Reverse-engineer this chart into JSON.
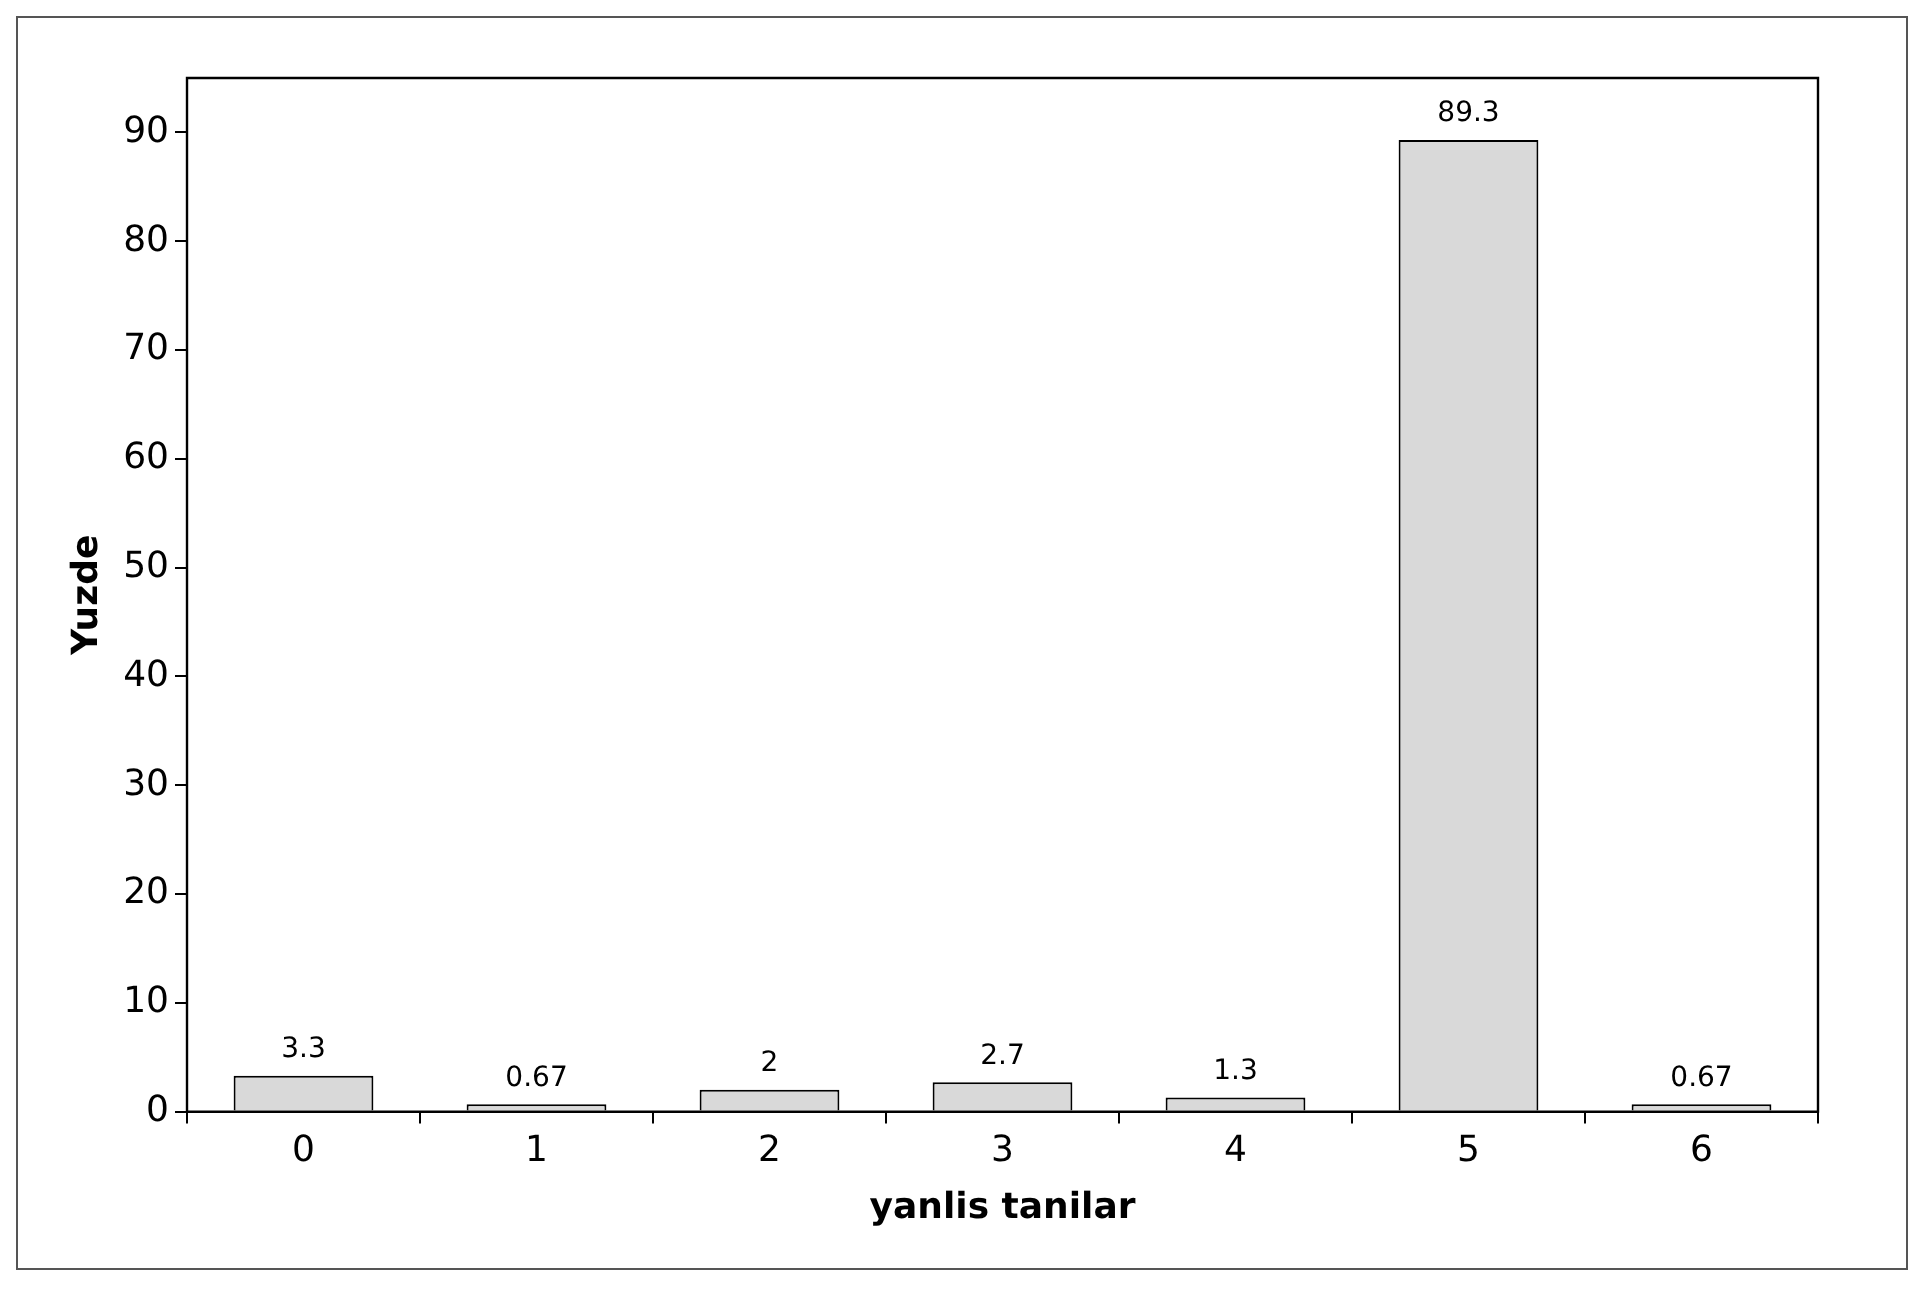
{
  "chart_data": {
    "type": "bar",
    "xlabel": "yanlis tanilar",
    "ylabel": "Yuzde",
    "categories": [
      "0",
      "1",
      "2",
      "3",
      "4",
      "5",
      "6"
    ],
    "values": [
      3.3,
      0.67,
      2,
      2.7,
      1.3,
      89.3,
      0.67
    ],
    "color": "#d9d9d9",
    "ylim": [
      0,
      95
    ],
    "yticks": [
      0,
      10,
      20,
      30,
      40,
      50,
      60,
      70,
      80,
      90
    ],
    "data_labels": true,
    "grid": false,
    "legend": false
  }
}
